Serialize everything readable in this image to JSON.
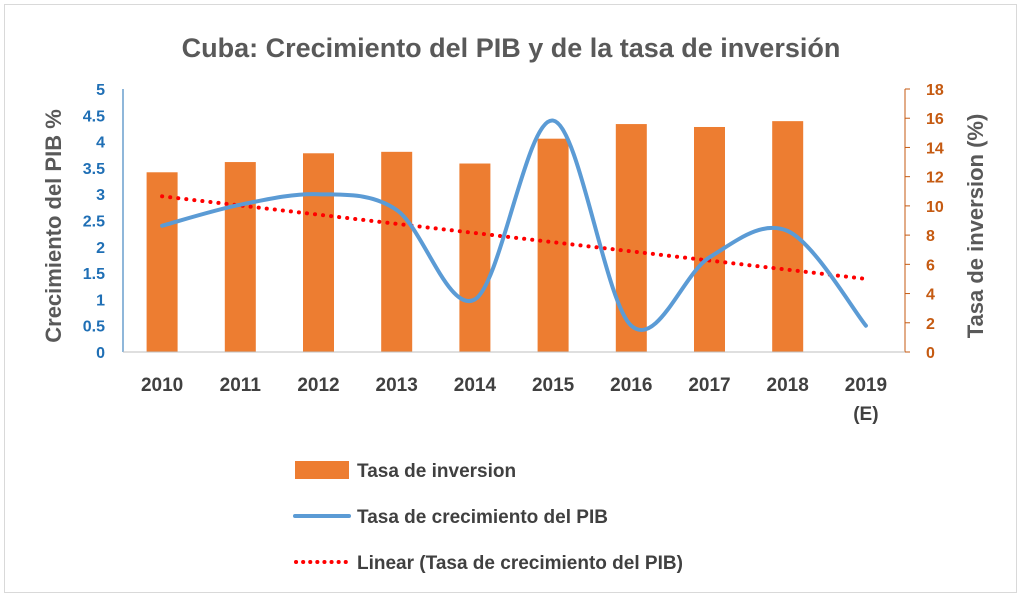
{
  "chart_data": {
    "type": "bar",
    "title": "Cuba: Crecimiento del PIB y de la tasa de inversión",
    "categories": [
      "2010",
      "2011",
      "2012",
      "2013",
      "2014",
      "2015",
      "2016",
      "2017",
      "2018",
      "2019 (E)"
    ],
    "category_lines": [
      [
        "2010"
      ],
      [
        "2011"
      ],
      [
        "2012"
      ],
      [
        "2013"
      ],
      [
        "2014"
      ],
      [
        "2015"
      ],
      [
        "2016"
      ],
      [
        "2017"
      ],
      [
        "2018"
      ],
      [
        "2019",
        "(E)"
      ]
    ],
    "ylabel_left": "Crecimiento del PIB %",
    "ylabel_right": "Tasa de inversion (%)",
    "ylim_left": [
      0,
      5
    ],
    "ylim_right": [
      0,
      18
    ],
    "yticks_left": [
      "0",
      "0.5",
      "1",
      "1.5",
      "2",
      "2.5",
      "3",
      "3.5",
      "4",
      "4.5",
      "5"
    ],
    "yticks_right": [
      "0",
      "2",
      "4",
      "6",
      "8",
      "10",
      "12",
      "14",
      "16",
      "18"
    ],
    "grid": false,
    "legend_position": "bottom",
    "series": [
      {
        "name": "Tasa de inversion",
        "type": "bar",
        "axis": "right",
        "color": "#ed7d31",
        "values": [
          12.3,
          13.0,
          13.6,
          13.7,
          12.9,
          14.6,
          15.6,
          15.4,
          15.8,
          null
        ]
      },
      {
        "name": "Tasa de crecimiento del PIB",
        "type": "line",
        "axis": "left",
        "color": "#5b9bd5",
        "smooth": true,
        "values": [
          2.4,
          2.8,
          3.0,
          2.7,
          1.0,
          4.4,
          0.5,
          1.8,
          2.3,
          0.5
        ]
      },
      {
        "name": "Linear (Tasa de crecimiento del PIB)",
        "type": "trendline",
        "axis": "left",
        "color": "#ff0000",
        "style": "dotted",
        "values": [
          2.96,
          2.79,
          2.61,
          2.44,
          2.26,
          2.09,
          1.91,
          1.74,
          1.56,
          1.39
        ]
      }
    ]
  }
}
